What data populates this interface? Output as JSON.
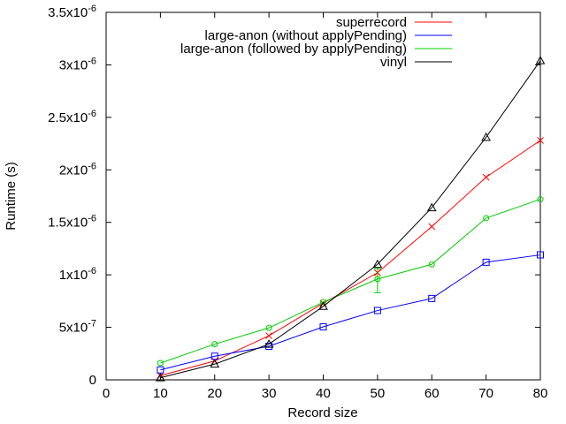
{
  "chart_data": {
    "type": "line",
    "xlabel": "Record size",
    "ylabel": "Runtime (s)",
    "xlim": [
      0,
      80
    ],
    "ylim": [
      0,
      3.5e-06
    ],
    "x_ticks": [
      0,
      10,
      20,
      30,
      40,
      50,
      60,
      70,
      80
    ],
    "y_ticks": [
      {
        "value": 0,
        "mantissa": "0",
        "exp": ""
      },
      {
        "value": 5e-07,
        "mantissa": "5x10",
        "exp": "-7"
      },
      {
        "value": 1e-06,
        "mantissa": "1x10",
        "exp": "-6"
      },
      {
        "value": 1.5e-06,
        "mantissa": "1.5x10",
        "exp": "-6"
      },
      {
        "value": 2e-06,
        "mantissa": "2x10",
        "exp": "-6"
      },
      {
        "value": 2.5e-06,
        "mantissa": "2.5x10",
        "exp": "-6"
      },
      {
        "value": 3e-06,
        "mantissa": "3x10",
        "exp": "-6"
      },
      {
        "value": 3.5e-06,
        "mantissa": "3.5x10",
        "exp": "-6"
      }
    ],
    "grid": false,
    "legend_position": "top-right",
    "x": [
      10,
      20,
      30,
      40,
      50,
      60,
      70,
      80
    ],
    "series": [
      {
        "name": "superrecord",
        "color": "#ff0000",
        "marker": "x",
        "values": [
          4e-08,
          1.8e-07,
          4.2e-07,
          7.3e-07,
          1.02e-06,
          1.46e-06,
          1.93e-06,
          2.28e-06
        ]
      },
      {
        "name": "large-anon (without applyPending)",
        "color": "#0000ff",
        "marker": "square",
        "values": [
          9.5e-08,
          2.25e-07,
          3.2e-07,
          5.05e-07,
          6.6e-07,
          7.75e-07,
          1.12e-06,
          1.19e-06
        ]
      },
      {
        "name": "large-anon (followed by applyPending)",
        "color": "#00cc00",
        "marker": "circle",
        "values": [
          1.6e-07,
          3.4e-07,
          4.95e-07,
          7.4e-07,
          9.6e-07,
          1.1e-06,
          1.54e-06,
          1.72e-06
        ],
        "error": [
          null,
          null,
          null,
          null,
          [
            8.3e-07,
            1.06e-06
          ],
          null,
          null,
          null
        ]
      },
      {
        "name": "vinyl",
        "color": "#000000",
        "marker": "triangle",
        "values": [
          2e-08,
          1.5e-07,
          3.4e-07,
          7e-07,
          1.1e-06,
          1.64e-06,
          2.31e-06,
          3.04e-06
        ]
      }
    ]
  }
}
